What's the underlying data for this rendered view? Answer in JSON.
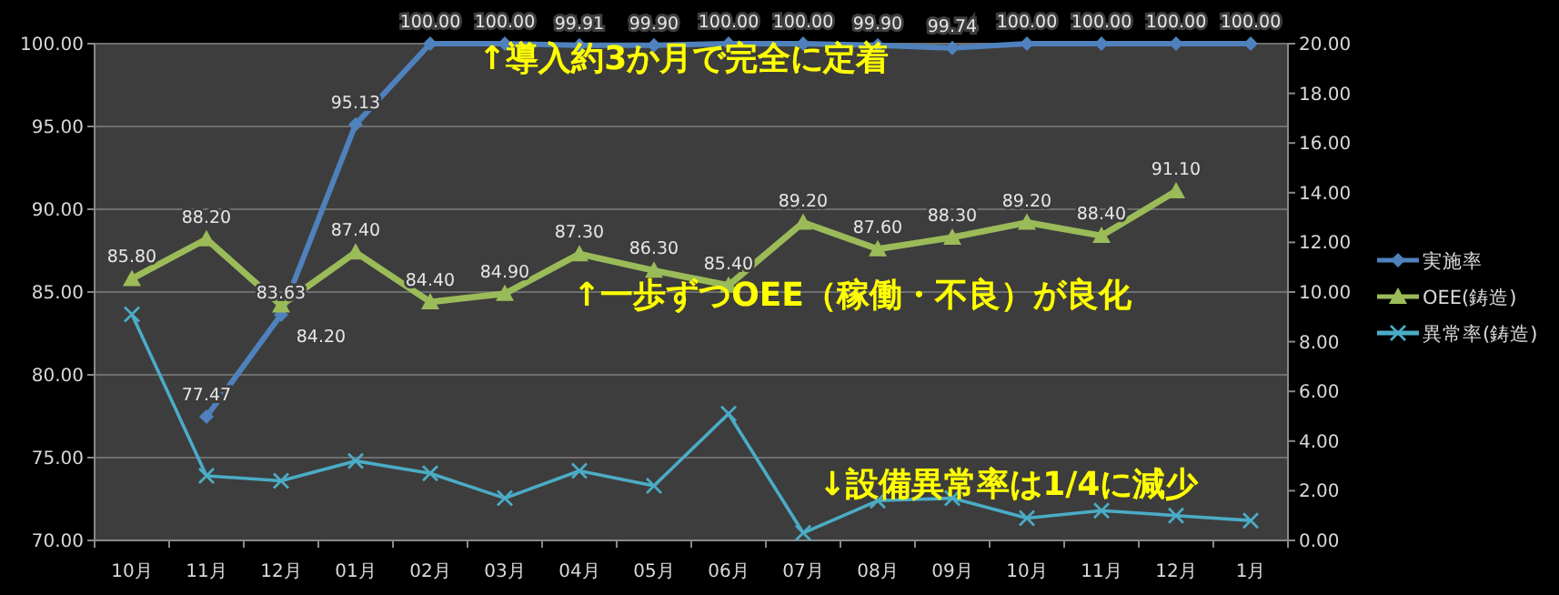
{
  "chart_data": {
    "type": "line",
    "categories": [
      "10月",
      "11月",
      "12月",
      "01月",
      "02月",
      "03月",
      "04月",
      "05月",
      "06月",
      "07月",
      "08月",
      "09月",
      "10月",
      "11月",
      "12月",
      "1月"
    ],
    "series": [
      {
        "name": "実施率",
        "color": "#4f81bd",
        "marker": "diamond",
        "values": [
          null,
          77.47,
          83.63,
          95.13,
          100,
          100,
          99.91,
          99.9,
          100,
          100,
          99.9,
          99.74,
          100,
          100,
          100,
          100
        ],
        "value_labels": [
          null,
          "77.47",
          "83.63",
          "95.13",
          "100.00",
          "100.00",
          "99.91",
          "99.90",
          "100.00",
          "100.00",
          "99.90",
          "99.74",
          "100.00",
          "100.00",
          "100.00",
          "100.00"
        ]
      },
      {
        "name": "OEE(鋳造)",
        "color": "#9bbb59",
        "marker": "triangle",
        "values": [
          85.8,
          88.2,
          84.2,
          87.4,
          84.4,
          84.9,
          87.3,
          86.3,
          85.4,
          89.2,
          87.6,
          88.3,
          89.2,
          88.4,
          91.1,
          null
        ],
        "value_labels": [
          "85.80",
          "88.20",
          "84.20",
          "87.40",
          "84.40",
          "84.90",
          "87.30",
          "86.30",
          "85.40",
          "89.20",
          "87.60",
          "88.30",
          "89.20",
          "88.40",
          "91.10",
          null
        ]
      },
      {
        "name": "異常率(鋳造)",
        "color": "#4bacc6",
        "marker": "cross",
        "axis": "y2",
        "values": [
          9.1,
          2.6,
          2.4,
          3.2,
          2.7,
          1.7,
          2.8,
          2.2,
          5.1,
          0.3,
          1.6,
          1.7,
          0.9,
          1.2,
          1.0,
          0.8
        ]
      }
    ],
    "ylim": [
      70,
      100
    ],
    "yticks": [
      {
        "value": 70,
        "label": "70.00"
      },
      {
        "value": 75,
        "label": "75.00"
      },
      {
        "value": 80,
        "label": "80.00"
      },
      {
        "value": 85,
        "label": "85.00"
      },
      {
        "value": 90,
        "label": "90.00"
      },
      {
        "value": 95,
        "label": "95.00"
      },
      {
        "value": 100,
        "label": "100.00"
      }
    ],
    "y2lim": [
      0,
      20
    ],
    "y2ticks": [
      {
        "value": 0,
        "label": "0.00"
      },
      {
        "value": 2,
        "label": "2.00"
      },
      {
        "value": 4,
        "label": "4.00"
      },
      {
        "value": 6,
        "label": "6.00"
      },
      {
        "value": 8,
        "label": "8.00"
      },
      {
        "value": 10,
        "label": "10.00"
      },
      {
        "value": 12,
        "label": "12.00"
      },
      {
        "value": 14,
        "label": "14.00"
      },
      {
        "value": 16,
        "label": "16.00"
      },
      {
        "value": 18,
        "label": "18.00"
      },
      {
        "value": 20,
        "label": "20.00"
      }
    ],
    "grid": "y",
    "legend": "right",
    "annotations": [
      "↑導入約3か月で完全に定着",
      "↑一歩ずつOEE（稼働・不良）が良化",
      "↓設備異常率は1/4に減少"
    ]
  }
}
